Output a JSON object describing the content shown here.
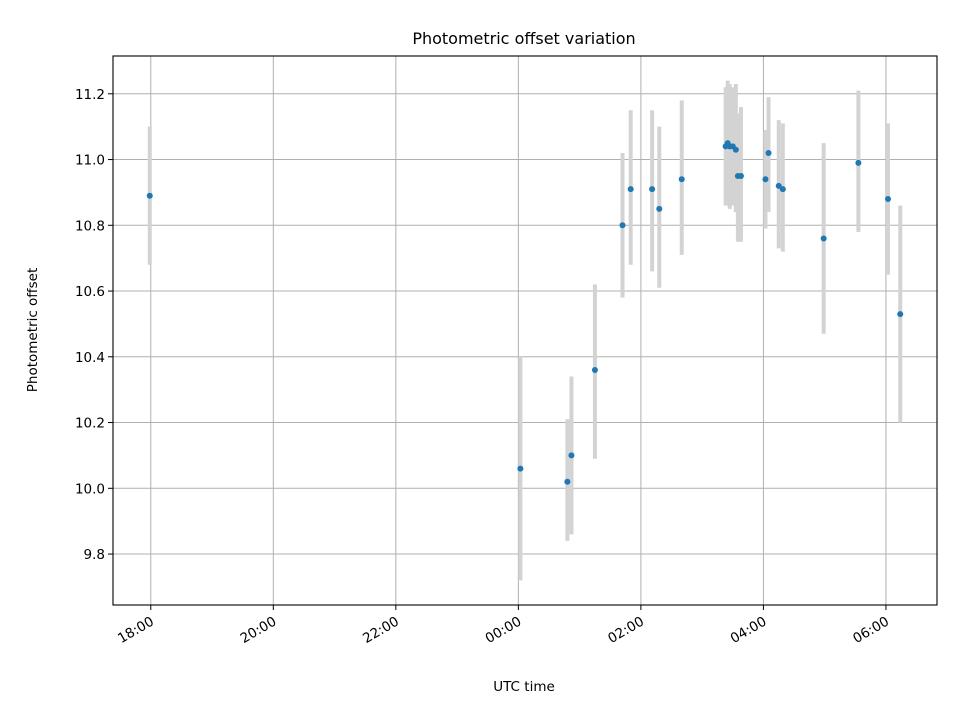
{
  "chart_data": {
    "type": "scatter",
    "title": "Photometric offset variation",
    "xlabel": "UTC time",
    "ylabel": "Photometric offset",
    "x_axis_kind": "time (UTC)",
    "xlim": [
      "17:23",
      "06:50"
    ],
    "ylim": [
      9.645,
      11.315
    ],
    "grid": true,
    "x_ticks": [
      "18:00",
      "20:00",
      "22:00",
      "00:00",
      "02:00",
      "04:00",
      "06:00"
    ],
    "y_ticks": [
      "9.8",
      "10.0",
      "10.2",
      "10.4",
      "10.6",
      "10.8",
      "11.0",
      "11.2"
    ],
    "colors": {
      "point": "#1f77b4",
      "errorbar": "#d3d3d3",
      "grid": "#b0b0b0",
      "axes": "#000000"
    },
    "points": [
      {
        "x": "17:59",
        "y": 10.89,
        "y_low": 10.68,
        "y_high": 11.1
      },
      {
        "x": "00:02",
        "y": 10.06,
        "y_low": 9.72,
        "y_high": 10.4
      },
      {
        "x": "00:48",
        "y": 10.02,
        "y_low": 9.84,
        "y_high": 10.21
      },
      {
        "x": "00:52",
        "y": 10.1,
        "y_low": 9.86,
        "y_high": 10.34
      },
      {
        "x": "01:15",
        "y": 10.36,
        "y_low": 10.09,
        "y_high": 10.62
      },
      {
        "x": "01:42",
        "y": 10.8,
        "y_low": 10.58,
        "y_high": 11.02
      },
      {
        "x": "01:50",
        "y": 10.91,
        "y_low": 10.68,
        "y_high": 11.15
      },
      {
        "x": "02:11",
        "y": 10.91,
        "y_low": 10.66,
        "y_high": 11.15
      },
      {
        "x": "02:18",
        "y": 10.85,
        "y_low": 10.61,
        "y_high": 11.1
      },
      {
        "x": "02:40",
        "y": 10.94,
        "y_low": 10.71,
        "y_high": 11.18
      },
      {
        "x": "03:23",
        "y": 11.04,
        "y_low": 10.86,
        "y_high": 11.22
      },
      {
        "x": "03:25",
        "y": 11.05,
        "y_low": 10.86,
        "y_high": 11.24
      },
      {
        "x": "03:27",
        "y": 11.04,
        "y_low": 10.85,
        "y_high": 11.23
      },
      {
        "x": "03:30",
        "y": 11.04,
        "y_low": 10.86,
        "y_high": 11.22
      },
      {
        "x": "03:33",
        "y": 11.03,
        "y_low": 10.84,
        "y_high": 11.23
      },
      {
        "x": "03:35",
        "y": 10.95,
        "y_low": 10.75,
        "y_high": 11.14
      },
      {
        "x": "03:38",
        "y": 10.95,
        "y_low": 10.75,
        "y_high": 11.16
      },
      {
        "x": "04:02",
        "y": 10.94,
        "y_low": 10.79,
        "y_high": 11.09
      },
      {
        "x": "04:05",
        "y": 11.02,
        "y_low": 10.84,
        "y_high": 11.19
      },
      {
        "x": "04:15",
        "y": 10.92,
        "y_low": 10.73,
        "y_high": 11.12
      },
      {
        "x": "04:19",
        "y": 10.91,
        "y_low": 10.72,
        "y_high": 11.11
      },
      {
        "x": "04:59",
        "y": 10.76,
        "y_low": 10.47,
        "y_high": 11.05
      },
      {
        "x": "05:33",
        "y": 10.99,
        "y_low": 10.78,
        "y_high": 11.21
      },
      {
        "x": "06:02",
        "y": 10.88,
        "y_low": 10.65,
        "y_high": 11.11
      },
      {
        "x": "06:14",
        "y": 10.53,
        "y_low": 10.2,
        "y_high": 10.86
      }
    ]
  }
}
